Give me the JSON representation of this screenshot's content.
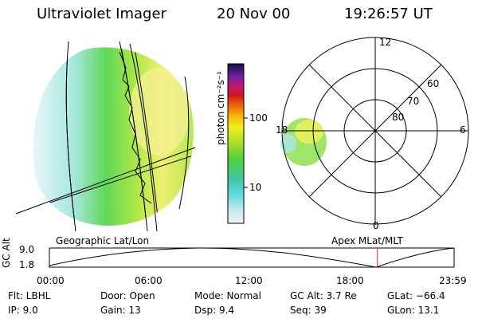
{
  "header": {
    "instrument": "Ultraviolet Imager",
    "date": "20 Nov 00",
    "time": "19:26:57 UT"
  },
  "colorbar": {
    "unit_label": "photon cm⁻²s⁻¹",
    "tick_100": "100",
    "tick_10": "10",
    "tick_100_value": 100,
    "tick_10_value": 10
  },
  "panels": {
    "left_caption": "Geographic Lat/Lon",
    "right_caption": "Apex MLat/MLT"
  },
  "polar": {
    "mlt_labels": [
      "12",
      "6",
      "0",
      "18"
    ],
    "lat_labels": [
      "60",
      "70",
      "80"
    ]
  },
  "altitude_plot": {
    "ylabel": "GC Alt",
    "ymax": "9.0",
    "ymin": "1.8",
    "time_ticks": [
      "00:00",
      "06:00",
      "12:00",
      "18:00",
      "23:59"
    ],
    "current_time_hours": 19.45
  },
  "status": {
    "flt": "Flt: LBHL",
    "ip": "IP:  9.0",
    "door": "Door: Open",
    "gain": "Gain: 13",
    "mode": "Mode: Normal",
    "dsp": "Dsp:    9.4",
    "gc_alt": "GC Alt: 3.7 Re",
    "seq": "Seq: 39",
    "glat": "GLat: −66.4",
    "glon": "GLon:  13.1"
  },
  "colors": {
    "line": "#000000",
    "marker": "#cc3333"
  }
}
